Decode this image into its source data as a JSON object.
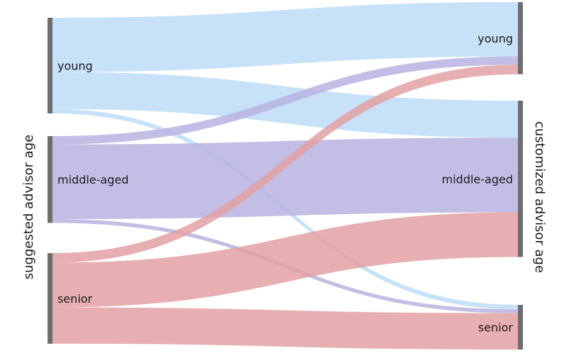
{
  "chart_data": {
    "type": "sankey",
    "left_axis_label": "suggested advisor age",
    "right_axis_label": "customized advisor age",
    "source_nodes": [
      {
        "id": "s_young",
        "label": "young"
      },
      {
        "id": "s_middle",
        "label": "middle-aged"
      },
      {
        "id": "s_senior",
        "label": "senior"
      }
    ],
    "target_nodes": [
      {
        "id": "t_young",
        "label": "young"
      },
      {
        "id": "t_middle",
        "label": "middle-aged"
      },
      {
        "id": "t_senior",
        "label": "senior"
      }
    ],
    "links": [
      {
        "source": "s_young",
        "target": "t_young",
        "value": 85,
        "color": "#bcdcf7"
      },
      {
        "source": "s_young",
        "target": "t_middle",
        "value": 58,
        "color": "#bcdcf7"
      },
      {
        "source": "s_young",
        "target": "t_senior",
        "value": 7,
        "color": "#bcdcf7"
      },
      {
        "source": "s_middle",
        "target": "t_young",
        "value": 13,
        "color": "#b7b3e0"
      },
      {
        "source": "s_middle",
        "target": "t_middle",
        "value": 117,
        "color": "#b7b3e0"
      },
      {
        "source": "s_middle",
        "target": "t_senior",
        "value": 6,
        "color": "#b7b3e0"
      },
      {
        "source": "s_senior",
        "target": "t_young",
        "value": 15,
        "color": "#e3a1a3"
      },
      {
        "source": "s_senior",
        "target": "t_middle",
        "value": 70,
        "color": "#e3a1a3"
      },
      {
        "source": "s_senior",
        "target": "t_senior",
        "value": 57,
        "color": "#e3a1a3"
      }
    ],
    "node_color": "#6e6e6e"
  }
}
